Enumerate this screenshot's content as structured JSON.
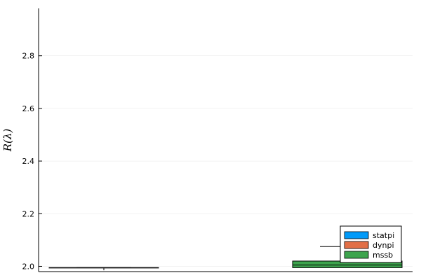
{
  "chart_data": {
    "type": "boxplot",
    "ylabel": "R(λ)",
    "ylim": [
      1.98,
      2.98
    ],
    "yticks": [
      2.0,
      2.2,
      2.4,
      2.6,
      2.8
    ],
    "ytick_labels": [
      "2.0",
      "2.2",
      "2.4",
      "2.6",
      "2.8"
    ],
    "grid": true,
    "legend_position": "bottom-right",
    "series": [
      {
        "name": "statpi",
        "color": "#009af9",
        "boxes": []
      },
      {
        "name": "dynpi",
        "color": "#e26f46",
        "boxes": []
      },
      {
        "name": "mssb",
        "color": "#3da44d",
        "boxes": [
          {
            "group": 1,
            "min": 1.985,
            "q1": 1.995,
            "median": 1.995,
            "q3": 1.995,
            "max": 1.995
          },
          {
            "group": 2,
            "min": 1.995,
            "q1": 1.995,
            "median": 2.005,
            "q3": 2.02,
            "max": 2.075
          }
        ]
      }
    ]
  }
}
